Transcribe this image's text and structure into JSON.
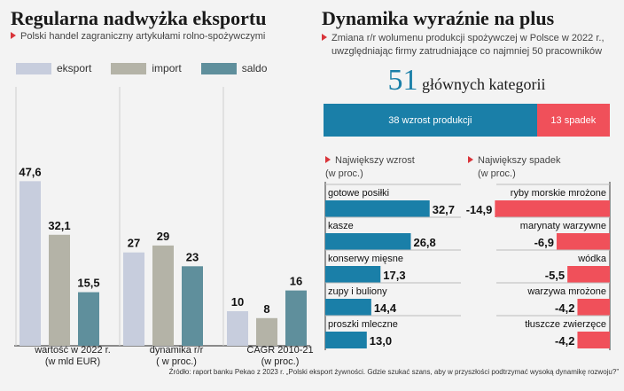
{
  "left": {
    "title": "Regularna nadwyżka eksportu",
    "subtitle": "Polski handel zagraniczny artykułami rolno-spożywczymi",
    "legend": [
      {
        "label": "eksport",
        "color": "#c7cddd"
      },
      {
        "label": "import",
        "color": "#b4b3a7"
      },
      {
        "label": "saldo",
        "color": "#5f8f9c"
      }
    ]
  },
  "chart_data": [
    {
      "type": "bar",
      "series_names": [
        "eksport",
        "import",
        "saldo"
      ],
      "groups": [
        {
          "label_lines": [
            "wartość w 2022 r.",
            "(w mld EUR)"
          ],
          "values": [
            47.6,
            32.1,
            15.5
          ],
          "labels": [
            "47,6",
            "32,1",
            "15,5"
          ]
        },
        {
          "label_lines": [
            "dynamika r/r",
            "( w proc.)"
          ],
          "values": [
            27,
            29,
            23
          ],
          "labels": [
            "27",
            "29",
            "23"
          ]
        },
        {
          "label_lines": [
            "CAGR 2010-21",
            "(w proc.)"
          ],
          "values": [
            10,
            8,
            16
          ],
          "labels": [
            "10",
            "8",
            "16"
          ]
        }
      ]
    },
    {
      "type": "bar",
      "title": "Największy wzrost",
      "unit": "(w proc.)",
      "categories": [
        "gotowe posiłki",
        "kasze",
        "konserwy mięsne",
        "zupy i buliony",
        "proszki mleczne"
      ],
      "values": [
        32.7,
        26.8,
        17.3,
        14.4,
        13.0
      ],
      "labels": [
        "32,7",
        "26,8",
        "17,3",
        "14,4",
        "13,0"
      ],
      "color": "#1a7fa8"
    },
    {
      "type": "bar",
      "title": "Największy spadek",
      "unit": "(w proc.)",
      "categories": [
        "ryby morskie mrożone",
        "marynaty warzywne",
        "wódka",
        "warzywa mrożone",
        "tłuszcze zwierzęce"
      ],
      "values": [
        -14.9,
        -6.9,
        -5.5,
        -4.2,
        -4.2
      ],
      "labels": [
        "-14,9",
        "-6,9",
        "-5,5",
        "-4,2",
        "-4,2"
      ],
      "color": "#f0505a"
    }
  ],
  "right": {
    "title": "Dynamika wyraźnie na plus",
    "subtitle_line1": "Zmiana r/r wolumenu produkcji spożywczej w Polsce w 2022 r.,",
    "subtitle_line2": "uwzględniając firmy zatrudniające co najmniej 50 pracowników",
    "big_number": "51",
    "big_label": "głównych kategorii",
    "split": {
      "growth": 38,
      "growth_label": "wzrost produkcji",
      "growth_color": "#1a7fa8",
      "decline": 13,
      "decline_label": "spadek",
      "decline_color": "#f0505a"
    }
  },
  "source": "Źródło: raport banku Pekao z 2023 r. „Polski eksport żywności. Gdzie szukać szans, aby w przyszłości podtrzymać wysoką dynamikę rozwoju?”"
}
